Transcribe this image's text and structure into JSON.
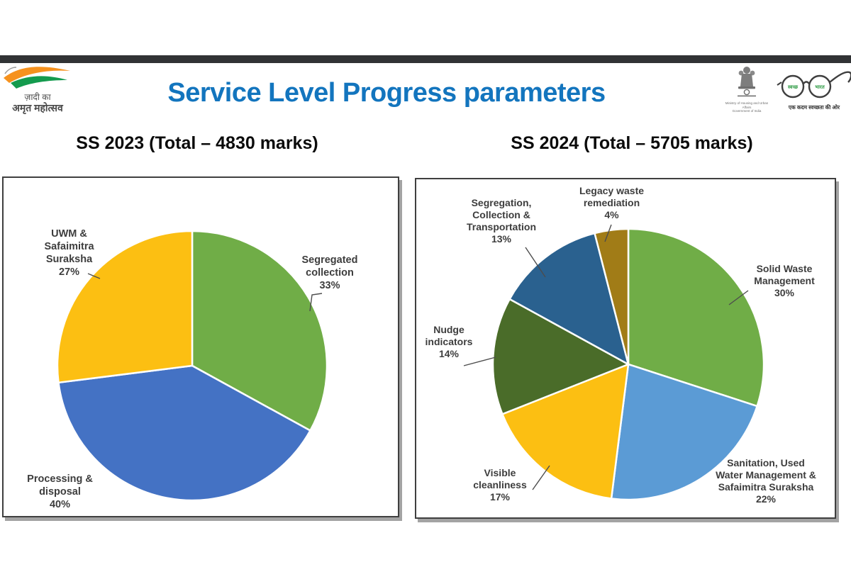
{
  "page": {
    "topbar_color": "#313335",
    "background": "#ffffff"
  },
  "header": {
    "title": "Service Level Progress parameters",
    "title_color": "#1375BE"
  },
  "logos": {
    "azadi": {
      "line1": "ज़ादी का",
      "line2": "अमृत महोत्सव",
      "saffron": "#F6921E",
      "green": "#149B4E"
    },
    "emblem": {
      "caption1": "Ministry of Housing and Urban Affairs",
      "caption2": "Government of India"
    },
    "swachh": {
      "lens_left": "स्वच्छ",
      "lens_right": "भारत",
      "tagline": "एक कदम स्वच्छता की ओर",
      "lens_text_color": "#2E9B44"
    }
  },
  "chart_data": [
    {
      "type": "pie",
      "title": "SS 2023 (Total – 4830 marks)",
      "total_marks": 4830,
      "start_angle_deg": 0,
      "direction": "clockwise",
      "slices": [
        {
          "label": "Segregated collection",
          "pct": 33,
          "color": "#70AD47",
          "display": "Segregated\ncollection\n33%"
        },
        {
          "label": "Processing & disposal",
          "pct": 40,
          "color": "#4472C4",
          "display": "Processing &\ndisposal\n40%"
        },
        {
          "label": "UWM & Safaimitra Suraksha",
          "pct": 27,
          "color": "#FCBF12",
          "display": "UWM &\nSafaimitra\nSuraksha\n27%"
        }
      ]
    },
    {
      "type": "pie",
      "title": "SS 2024 (Total – 5705 marks)",
      "total_marks": 5705,
      "start_angle_deg": 0,
      "direction": "clockwise",
      "slices": [
        {
          "label": "Solid Waste Management",
          "pct": 30,
          "color": "#70AD47",
          "display": "Solid Waste\nManagement\n30%"
        },
        {
          "label": "Sanitation, Used Water Management & Safaimitra Suraksha",
          "pct": 22,
          "color": "#5B9BD5",
          "display": "Sanitation, Used\nWater Management &\nSafaimitra Suraksha\n22%"
        },
        {
          "label": "Visible cleanliness",
          "pct": 17,
          "color": "#FCBF12",
          "display": "Visible\ncleanliness\n17%"
        },
        {
          "label": "Nudge indicators",
          "pct": 14,
          "color": "#4A6C29",
          "display": "Nudge\nindicators\n14%"
        },
        {
          "label": "Segregation, Collection & Transportation",
          "pct": 13,
          "color": "#2A618F",
          "display": "Segregation,\nCollection &\nTransportation\n13%"
        },
        {
          "label": "Legacy waste remediation",
          "pct": 4,
          "color": "#A17C17",
          "display": "Legacy waste\nremediation\n4%"
        }
      ]
    }
  ]
}
